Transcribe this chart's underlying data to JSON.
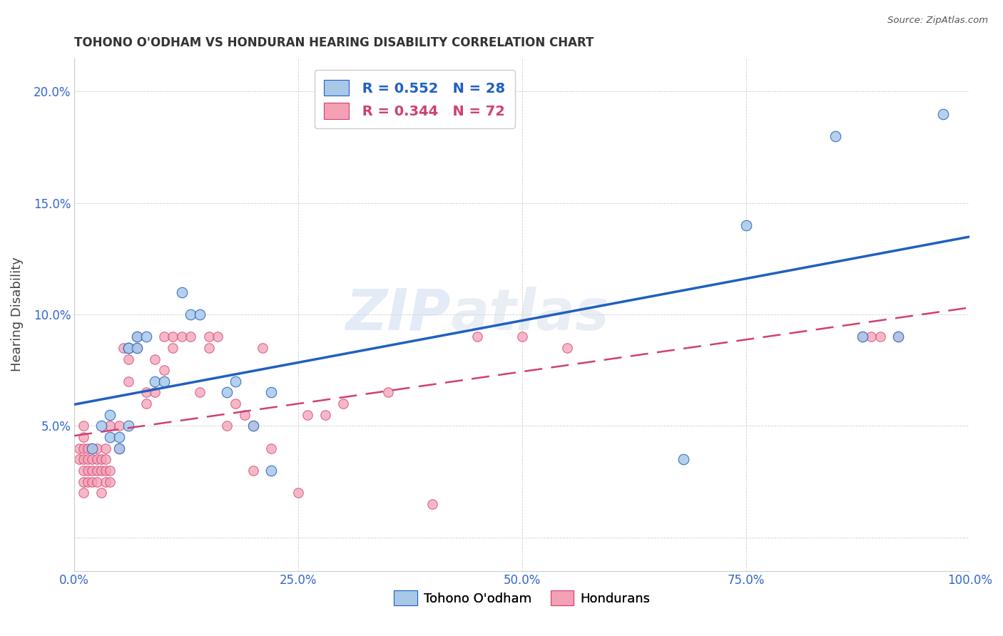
{
  "title": "TOHONO O'ODHAM VS HONDURAN HEARING DISABILITY CORRELATION CHART",
  "source": "Source: ZipAtlas.com",
  "ylabel": "Hearing Disability",
  "legend_label1": "Tohono O'odham",
  "legend_label2": "Hondurans",
  "r1": "0.552",
  "n1": "28",
  "r2": "0.344",
  "n2": "72",
  "color_blue": "#a8c8e8",
  "color_pink": "#f4a0b5",
  "line_color_blue": "#2060c0",
  "line_color_pink": "#d04070",
  "background_color": "#ffffff",
  "watermark_zip": "ZIP",
  "watermark_atlas": "atlas",
  "xlim": [
    0.0,
    1.0
  ],
  "ylim": [
    -0.015,
    0.215
  ],
  "xticks": [
    0.0,
    0.25,
    0.5,
    0.75,
    1.0
  ],
  "xtick_labels": [
    "0.0%",
    "25.0%",
    "50.0%",
    "75.0%",
    "100.0%"
  ],
  "yticks": [
    0.0,
    0.05,
    0.1,
    0.15,
    0.2
  ],
  "ytick_labels": [
    "",
    "5.0%",
    "10.0%",
    "15.0%",
    "20.0%"
  ],
  "blue_x": [
    0.02,
    0.03,
    0.04,
    0.04,
    0.05,
    0.05,
    0.06,
    0.06,
    0.06,
    0.07,
    0.07,
    0.08,
    0.09,
    0.1,
    0.12,
    0.13,
    0.14,
    0.17,
    0.18,
    0.2,
    0.22,
    0.22,
    0.68,
    0.75,
    0.85,
    0.88,
    0.92,
    0.97
  ],
  "blue_y": [
    0.04,
    0.05,
    0.045,
    0.055,
    0.04,
    0.045,
    0.085,
    0.085,
    0.05,
    0.09,
    0.085,
    0.09,
    0.07,
    0.07,
    0.11,
    0.1,
    0.1,
    0.065,
    0.07,
    0.05,
    0.03,
    0.065,
    0.035,
    0.14,
    0.18,
    0.09,
    0.09,
    0.19
  ],
  "pink_x": [
    0.005,
    0.005,
    0.01,
    0.01,
    0.01,
    0.01,
    0.01,
    0.01,
    0.01,
    0.015,
    0.015,
    0.015,
    0.015,
    0.02,
    0.02,
    0.02,
    0.02,
    0.025,
    0.025,
    0.025,
    0.025,
    0.03,
    0.03,
    0.03,
    0.035,
    0.035,
    0.035,
    0.035,
    0.04,
    0.04,
    0.04,
    0.05,
    0.05,
    0.055,
    0.06,
    0.06,
    0.07,
    0.07,
    0.08,
    0.08,
    0.09,
    0.09,
    0.1,
    0.1,
    0.11,
    0.11,
    0.12,
    0.13,
    0.14,
    0.15,
    0.15,
    0.16,
    0.17,
    0.18,
    0.19,
    0.2,
    0.2,
    0.21,
    0.22,
    0.25,
    0.26,
    0.28,
    0.3,
    0.35,
    0.4,
    0.45,
    0.5,
    0.55,
    0.88,
    0.89,
    0.9,
    0.92
  ],
  "pink_y": [
    0.035,
    0.04,
    0.02,
    0.025,
    0.03,
    0.035,
    0.04,
    0.045,
    0.05,
    0.025,
    0.03,
    0.035,
    0.04,
    0.025,
    0.03,
    0.035,
    0.04,
    0.025,
    0.03,
    0.035,
    0.04,
    0.02,
    0.03,
    0.035,
    0.025,
    0.03,
    0.035,
    0.04,
    0.025,
    0.03,
    0.05,
    0.04,
    0.05,
    0.085,
    0.07,
    0.08,
    0.085,
    0.09,
    0.06,
    0.065,
    0.065,
    0.08,
    0.075,
    0.09,
    0.085,
    0.09,
    0.09,
    0.09,
    0.065,
    0.085,
    0.09,
    0.09,
    0.05,
    0.06,
    0.055,
    0.03,
    0.05,
    0.085,
    0.04,
    0.02,
    0.055,
    0.055,
    0.06,
    0.065,
    0.015,
    0.09,
    0.09,
    0.085,
    0.09,
    0.09,
    0.09,
    0.09
  ]
}
